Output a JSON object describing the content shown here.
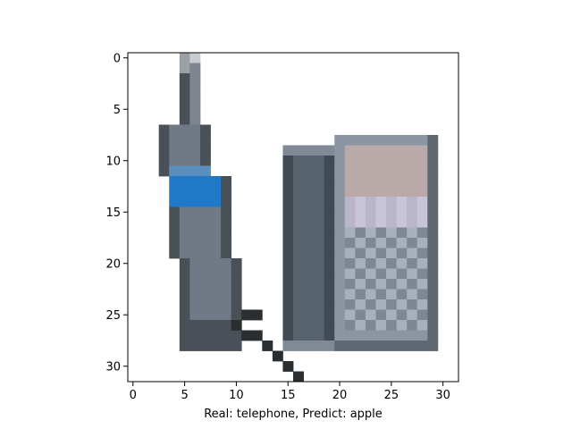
{
  "figure": {
    "caption": "Real: telephone, Predict: apple",
    "image_grid": {
      "cols": 32,
      "rows": 32
    },
    "x_ticks": [
      {
        "value": 0,
        "label": "0"
      },
      {
        "value": 5,
        "label": "5"
      },
      {
        "value": 10,
        "label": "10"
      },
      {
        "value": 15,
        "label": "15"
      },
      {
        "value": 20,
        "label": "20"
      },
      {
        "value": 25,
        "label": "25"
      },
      {
        "value": 30,
        "label": "30"
      }
    ],
    "y_ticks": [
      {
        "value": 0,
        "label": "0"
      },
      {
        "value": 5,
        "label": "5"
      },
      {
        "value": 10,
        "label": "10"
      },
      {
        "value": 15,
        "label": "15"
      },
      {
        "value": 20,
        "label": "20"
      },
      {
        "value": 25,
        "label": "25"
      },
      {
        "value": 30,
        "label": "30"
      }
    ],
    "depicted_object": "telephone",
    "colors": {
      "background": "#ffffff",
      "handset_dark": "#4a5058",
      "handset_mid": "#6f7a86",
      "screen_blue": "#1f78c8",
      "base_dark": "#3f4a52",
      "base_mid": "#8b96a2",
      "keypad": "#a8b0bb",
      "display": "#b9a9a9",
      "cord": "#2a2e30"
    }
  }
}
